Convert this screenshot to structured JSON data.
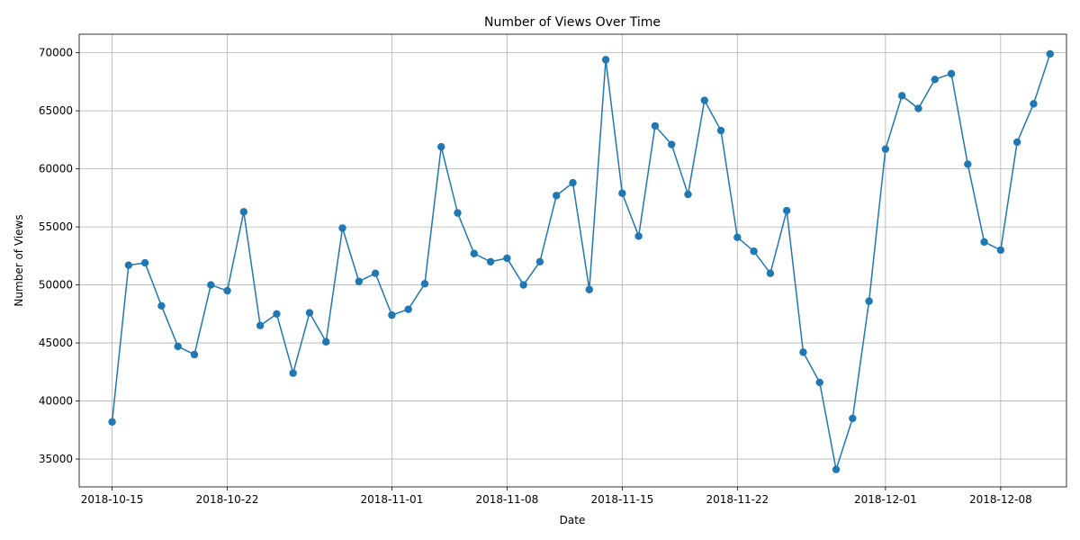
{
  "chart_data": {
    "type": "line",
    "title": "Number of Views Over Time",
    "xlabel": "Date",
    "ylabel": "Number of Views",
    "grid": true,
    "marker": "circle",
    "color": "#1f77b4",
    "xlim": [
      "2018-10-13",
      "2018-12-12"
    ],
    "ylim": [
      32600,
      71600
    ],
    "x_ticks": [
      "2018-10-15",
      "2018-10-22",
      "2018-11-01",
      "2018-11-08",
      "2018-11-15",
      "2018-11-22",
      "2018-12-01",
      "2018-12-08"
    ],
    "y_ticks": [
      35000,
      40000,
      45000,
      50000,
      55000,
      60000,
      65000,
      70000
    ],
    "x": [
      "2018-10-15",
      "2018-10-16",
      "2018-10-17",
      "2018-10-18",
      "2018-10-19",
      "2018-10-20",
      "2018-10-21",
      "2018-10-22",
      "2018-10-23",
      "2018-10-24",
      "2018-10-25",
      "2018-10-26",
      "2018-10-27",
      "2018-10-28",
      "2018-10-29",
      "2018-10-30",
      "2018-10-31",
      "2018-11-01",
      "2018-11-02",
      "2018-11-03",
      "2018-11-04",
      "2018-11-05",
      "2018-11-06",
      "2018-11-07",
      "2018-11-08",
      "2018-11-09",
      "2018-11-10",
      "2018-11-11",
      "2018-11-12",
      "2018-11-13",
      "2018-11-14",
      "2018-11-15",
      "2018-11-16",
      "2018-11-17",
      "2018-11-18",
      "2018-11-19",
      "2018-11-20",
      "2018-11-21",
      "2018-11-22",
      "2018-11-23",
      "2018-11-24",
      "2018-11-25",
      "2018-11-26",
      "2018-11-27",
      "2018-11-28",
      "2018-11-29",
      "2018-11-30",
      "2018-12-01",
      "2018-12-02",
      "2018-12-03",
      "2018-12-04",
      "2018-12-05",
      "2018-12-06",
      "2018-12-07",
      "2018-12-08",
      "2018-12-09",
      "2018-12-10",
      "2018-12-11"
    ],
    "y": [
      38200,
      51700,
      51900,
      48200,
      44700,
      44000,
      50000,
      49500,
      56300,
      46500,
      47500,
      42400,
      47600,
      45100,
      54900,
      50300,
      51000,
      47400,
      47900,
      50100,
      61900,
      56200,
      52700,
      52000,
      52300,
      50000,
      52000,
      57700,
      58800,
      49600,
      69400,
      57900,
      54200,
      63700,
      62100,
      57800,
      65900,
      63300,
      54100,
      52900,
      51000,
      56400,
      44200,
      41600,
      34100,
      38500,
      48600,
      61700,
      66300,
      65200,
      67700,
      68200,
      60400,
      53700,
      53000,
      62300,
      65600,
      69900
    ]
  }
}
